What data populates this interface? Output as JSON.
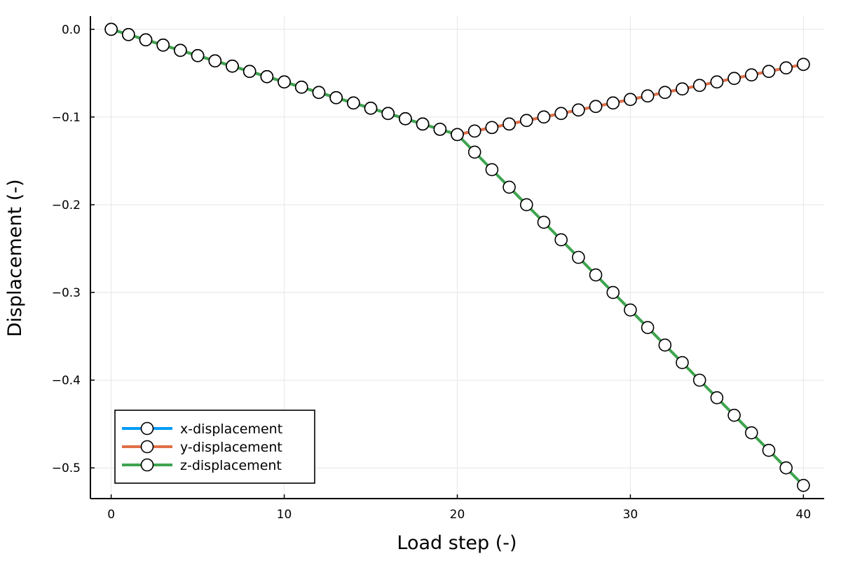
{
  "chart_data": {
    "type": "line",
    "title": "",
    "xlabel": "Load step (-)",
    "ylabel": "Displacement (-)",
    "xlim": [
      -1.2,
      41.2
    ],
    "ylim": [
      -0.535,
      0.015
    ],
    "xticks": [
      0,
      10,
      20,
      30,
      40
    ],
    "xtick_labels": [
      "0",
      "10",
      "20",
      "30",
      "40"
    ],
    "yticks": [
      0.0,
      -0.1,
      -0.2,
      -0.3,
      -0.4,
      -0.5
    ],
    "ytick_labels": [
      "0.0",
      "−0.1",
      "−0.2",
      "−0.3",
      "−0.4",
      "−0.5"
    ],
    "grid": true,
    "legend_position": "bottom-left",
    "marker": "open-circle",
    "series": [
      {
        "name": "x-displacement",
        "color": "#009AFA",
        "x": [
          0,
          1,
          2,
          3,
          4,
          5,
          6,
          7,
          8,
          9,
          10,
          11,
          12,
          13,
          14,
          15,
          16,
          17,
          18,
          19,
          20,
          21,
          22,
          23,
          24,
          25,
          26,
          27,
          28,
          29,
          30,
          31,
          32,
          33,
          34,
          35,
          36,
          37,
          38,
          39,
          40
        ],
        "y": [
          0,
          -0.006,
          -0.012,
          -0.018,
          -0.024,
          -0.03,
          -0.036,
          -0.042,
          -0.048,
          -0.054,
          -0.06,
          -0.066,
          -0.072,
          -0.078,
          -0.084,
          -0.09,
          -0.096,
          -0.102,
          -0.108,
          -0.114,
          -0.12,
          -0.116,
          -0.112,
          -0.108,
          -0.104,
          -0.1,
          -0.096,
          -0.092,
          -0.088,
          -0.084,
          -0.08,
          -0.076,
          -0.072,
          -0.068,
          -0.064,
          -0.06,
          -0.056,
          -0.052,
          -0.048,
          -0.044,
          -0.04
        ]
      },
      {
        "name": "y-displacement",
        "color": "#E26F46",
        "x": [
          0,
          1,
          2,
          3,
          4,
          5,
          6,
          7,
          8,
          9,
          10,
          11,
          12,
          13,
          14,
          15,
          16,
          17,
          18,
          19,
          20,
          21,
          22,
          23,
          24,
          25,
          26,
          27,
          28,
          29,
          30,
          31,
          32,
          33,
          34,
          35,
          36,
          37,
          38,
          39,
          40
        ],
        "y": [
          0,
          -0.006,
          -0.012,
          -0.018,
          -0.024,
          -0.03,
          -0.036,
          -0.042,
          -0.048,
          -0.054,
          -0.06,
          -0.066,
          -0.072,
          -0.078,
          -0.084,
          -0.09,
          -0.096,
          -0.102,
          -0.108,
          -0.114,
          -0.12,
          -0.116,
          -0.112,
          -0.108,
          -0.104,
          -0.1,
          -0.096,
          -0.092,
          -0.088,
          -0.084,
          -0.08,
          -0.076,
          -0.072,
          -0.068,
          -0.064,
          -0.06,
          -0.056,
          -0.052,
          -0.048,
          -0.044,
          -0.04
        ]
      },
      {
        "name": "z-displacement",
        "color": "#3EA44E",
        "x": [
          0,
          1,
          2,
          3,
          4,
          5,
          6,
          7,
          8,
          9,
          10,
          11,
          12,
          13,
          14,
          15,
          16,
          17,
          18,
          19,
          20,
          21,
          22,
          23,
          24,
          25,
          26,
          27,
          28,
          29,
          30,
          31,
          32,
          33,
          34,
          35,
          36,
          37,
          38,
          39,
          40
        ],
        "y": [
          0,
          -0.006,
          -0.012,
          -0.018,
          -0.024,
          -0.03,
          -0.036,
          -0.042,
          -0.048,
          -0.054,
          -0.06,
          -0.066,
          -0.072,
          -0.078,
          -0.084,
          -0.09,
          -0.096,
          -0.102,
          -0.108,
          -0.114,
          -0.12,
          -0.14,
          -0.16,
          -0.18,
          -0.2,
          -0.22,
          -0.24,
          -0.26,
          -0.28,
          -0.3,
          -0.32,
          -0.34,
          -0.36,
          -0.38,
          -0.4,
          -0.42,
          -0.44,
          -0.46,
          -0.48,
          -0.5,
          -0.52
        ]
      }
    ]
  }
}
